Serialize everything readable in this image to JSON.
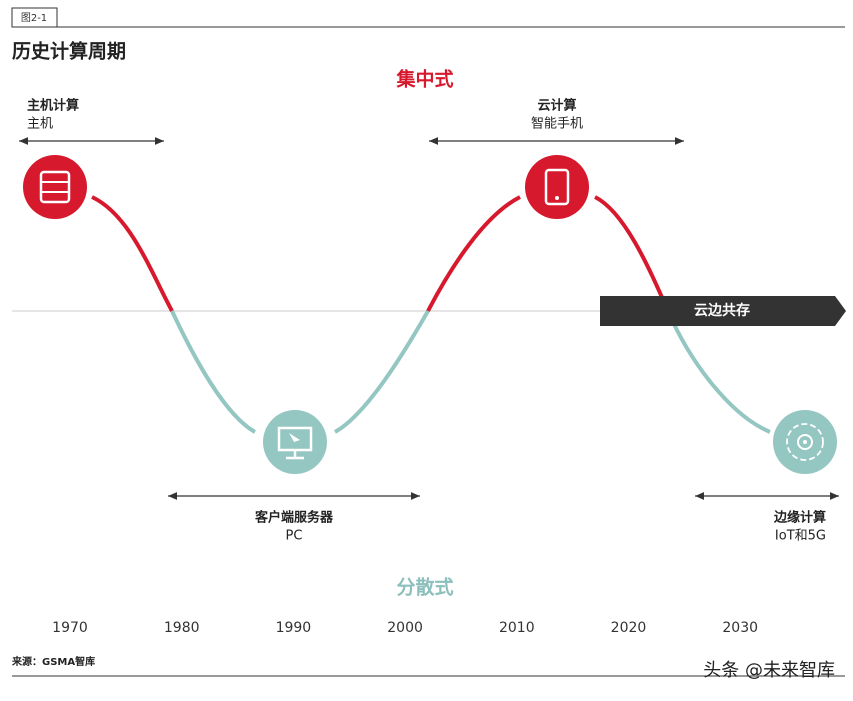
{
  "figure_label": "图2-1",
  "title": "历史计算周期",
  "top_label": "集中式",
  "bottom_label": "分散式",
  "phases": [
    {
      "title": "主机计算",
      "subtitle": "主机"
    },
    {
      "title": "客户端服务器",
      "subtitle": "PC"
    },
    {
      "title": "云计算",
      "subtitle": "智能手机"
    },
    {
      "title": "边缘计算",
      "subtitle": "IoT和5G"
    }
  ],
  "banner": "云边共存",
  "years": [
    "1970",
    "1980",
    "1990",
    "2000",
    "2010",
    "2020",
    "2030"
  ],
  "source": "来源：GSMA智库",
  "watermark": "头条 @未来智库"
}
